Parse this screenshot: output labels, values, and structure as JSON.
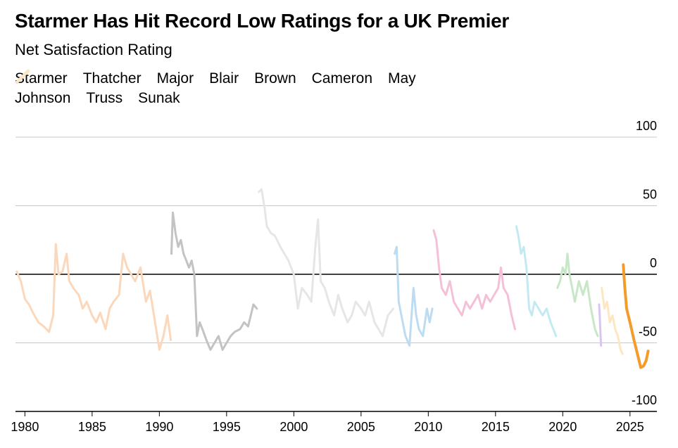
{
  "title": "Starmer Has Hit Record Low Ratings for a UK Premier",
  "subtitle": "Net Satisfaction Rating",
  "chart_data": {
    "type": "line",
    "title": "Starmer Has Hit Record Low Ratings for a UK Premier",
    "subtitle": "Net Satisfaction Rating",
    "xlim": [
      1979.3,
      2027.0
    ],
    "ylim": [
      -100,
      100
    ],
    "x_ticks": [
      "1980",
      "1985",
      "1990",
      "1995",
      "2000",
      "2005",
      "2010",
      "2015",
      "2020",
      "2025"
    ],
    "x_tick_values": [
      1980,
      1985,
      1990,
      1995,
      2000,
      2005,
      2010,
      2015,
      2020,
      2025
    ],
    "y_ticks": [
      "100",
      "50",
      "0",
      "-50",
      "-100"
    ],
    "y_tick_values": [
      100,
      50,
      0,
      -50,
      -100
    ],
    "grid": "horizontal",
    "legend_position": "top-left",
    "series": [
      {
        "name": "Starmer",
        "color": "#f39c2c",
        "x": [
          2024.5,
          2024.6,
          2024.75,
          2025.0,
          2025.3,
          2025.6,
          2025.8,
          2026.0,
          2026.2,
          2026.35
        ],
        "y": [
          7,
          -8,
          -25,
          -35,
          -48,
          -60,
          -68,
          -67,
          -63,
          -56
        ]
      },
      {
        "name": "Thatcher",
        "color": "#fbd7bb",
        "x": [
          1979.4,
          1979.7,
          1980.0,
          1980.3,
          1980.6,
          1981.0,
          1981.4,
          1981.8,
          1982.1,
          1982.3,
          1982.5,
          1982.8,
          1983.1,
          1983.3,
          1983.6,
          1984.0,
          1984.3,
          1984.6,
          1985.0,
          1985.3,
          1985.6,
          1986.0,
          1986.3,
          1986.6,
          1987.0,
          1987.3,
          1987.6,
          1987.9,
          1988.2,
          1988.6,
          1989.0,
          1989.3,
          1989.6,
          1990.0,
          1990.3,
          1990.6,
          1990.85
        ],
        "y": [
          2,
          -5,
          -18,
          -22,
          -28,
          -35,
          -38,
          -42,
          -30,
          22,
          0,
          2,
          15,
          -5,
          -10,
          -15,
          -25,
          -20,
          -30,
          -35,
          -28,
          -40,
          -25,
          -20,
          -15,
          15,
          5,
          0,
          -5,
          5,
          -20,
          -12,
          -30,
          -55,
          -45,
          -30,
          -48
        ]
      },
      {
        "name": "Major",
        "color": "#c3c3c3",
        "x": [
          1990.9,
          1991.0,
          1991.2,
          1991.4,
          1991.6,
          1991.8,
          1992.0,
          1992.2,
          1992.4,
          1992.6,
          1992.8,
          1993.0,
          1993.2,
          1993.5,
          1993.8,
          1994.1,
          1994.4,
          1994.7,
          1995.0,
          1995.3,
          1995.6,
          1996.0,
          1996.3,
          1996.6,
          1997.0,
          1997.25
        ],
        "y": [
          15,
          45,
          30,
          20,
          25,
          15,
          10,
          5,
          10,
          0,
          -45,
          -35,
          -40,
          -48,
          -55,
          -50,
          -45,
          -55,
          -50,
          -45,
          -42,
          -40,
          -35,
          -38,
          -22,
          -25
        ]
      },
      {
        "name": "Blair",
        "color": "#e6e6e6",
        "x": [
          1997.4,
          1997.6,
          1997.8,
          1998.0,
          1998.3,
          1998.6,
          1999.0,
          1999.3,
          1999.6,
          2000.0,
          2000.3,
          2000.6,
          2001.0,
          2001.3,
          2001.6,
          2001.8,
          2002.0,
          2002.3,
          2002.6,
          2003.0,
          2003.3,
          2003.6,
          2004.0,
          2004.3,
          2004.6,
          2005.0,
          2005.3,
          2005.6,
          2006.0,
          2006.3,
          2006.6,
          2007.0,
          2007.4
        ],
        "y": [
          60,
          62,
          50,
          35,
          30,
          28,
          20,
          15,
          10,
          0,
          -25,
          -10,
          -15,
          -20,
          20,
          40,
          -5,
          -10,
          -20,
          -30,
          -15,
          -25,
          -35,
          -30,
          -20,
          -25,
          -30,
          -20,
          -35,
          -40,
          -45,
          -30,
          -25
        ]
      },
      {
        "name": "Brown",
        "color": "#bddcf2",
        "x": [
          2007.5,
          2007.65,
          2007.8,
          2008.0,
          2008.3,
          2008.6,
          2008.9,
          2009.1,
          2009.3,
          2009.6,
          2009.9,
          2010.1,
          2010.3
        ],
        "y": [
          15,
          20,
          -20,
          -30,
          -45,
          -52,
          -10,
          -30,
          -40,
          -45,
          -25,
          -35,
          -25
        ]
      },
      {
        "name": "Cameron",
        "color": "#f5bfd8",
        "x": [
          2010.4,
          2010.6,
          2010.8,
          2011.0,
          2011.3,
          2011.6,
          2011.9,
          2012.2,
          2012.5,
          2012.8,
          2013.1,
          2013.4,
          2013.7,
          2014.0,
          2014.3,
          2014.6,
          2014.9,
          2015.2,
          2015.4,
          2015.6,
          2015.9,
          2016.2,
          2016.45
        ],
        "y": [
          32,
          25,
          5,
          -10,
          -15,
          -5,
          -20,
          -25,
          -30,
          -20,
          -25,
          -20,
          -15,
          -25,
          -15,
          -20,
          -15,
          -10,
          5,
          -10,
          -15,
          -30,
          -40
        ]
      },
      {
        "name": "May",
        "color": "#c3eaf3",
        "x": [
          2016.55,
          2016.7,
          2016.9,
          2017.1,
          2017.3,
          2017.5,
          2017.7,
          2017.9,
          2018.2,
          2018.5,
          2018.8,
          2019.1,
          2019.3,
          2019.5
        ],
        "y": [
          35,
          28,
          15,
          20,
          5,
          -25,
          -30,
          -20,
          -25,
          -30,
          -25,
          -35,
          -40,
          -45
        ]
      },
      {
        "name": "Johnson",
        "color": "#c7e7c7",
        "x": [
          2019.6,
          2019.8,
          2020.0,
          2020.2,
          2020.35,
          2020.5,
          2020.7,
          2020.9,
          2021.2,
          2021.5,
          2021.8,
          2022.1,
          2022.4,
          2022.6
        ],
        "y": [
          -10,
          -5,
          5,
          0,
          15,
          0,
          -10,
          -20,
          -5,
          -15,
          -5,
          -25,
          -40,
          -45
        ]
      },
      {
        "name": "Truss",
        "color": "#d9c5f1",
        "x": [
          2022.7,
          2022.75,
          2022.8,
          2022.85
        ],
        "y": [
          -22,
          -30,
          -42,
          -52
        ]
      },
      {
        "name": "Sunak",
        "color": "#fde6c2",
        "x": [
          2022.9,
          2023.1,
          2023.3,
          2023.5,
          2023.7,
          2023.9,
          2024.1,
          2024.3,
          2024.45
        ],
        "y": [
          -10,
          -25,
          -20,
          -35,
          -30,
          -40,
          -45,
          -55,
          -58
        ]
      }
    ]
  }
}
